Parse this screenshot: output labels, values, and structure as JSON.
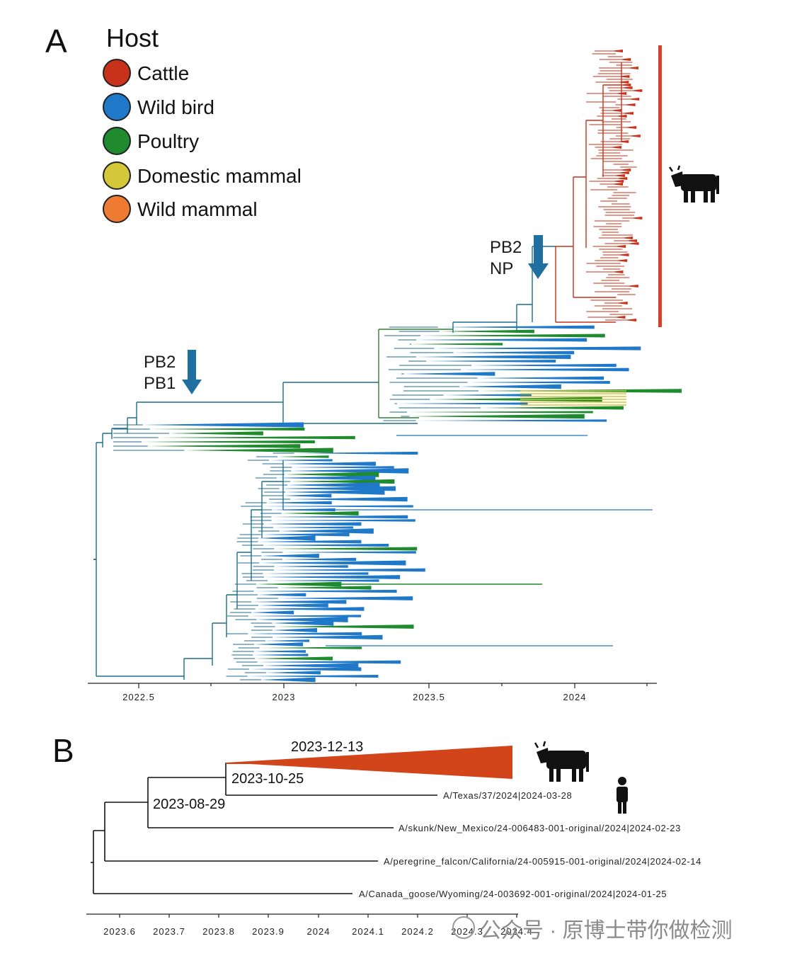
{
  "colors": {
    "cattle": "#c8321a",
    "wild_bird": "#1f78c8",
    "poultry": "#1f8a2e",
    "domestic_mammal": "#d4c83a",
    "wild_mammal": "#ef7a32",
    "trunk": "#1c6e8c",
    "arrow": "#1f6fa0",
    "cattle_bar": "#d2442a",
    "triangle": "#d2441a"
  },
  "panel_a": {
    "letter": "A",
    "legend": {
      "title": "Host",
      "items": [
        {
          "label": "Cattle",
          "color": "#c8321a"
        },
        {
          "label": "Wild bird",
          "color": "#1f78c8"
        },
        {
          "label": "Poultry",
          "color": "#1f8a2e"
        },
        {
          "label": "Domestic mammal",
          "color": "#d4c83a"
        },
        {
          "label": "Wild mammal",
          "color": "#ef7a32"
        }
      ]
    },
    "callout_1": {
      "line1": "PB2",
      "line2": "NP"
    },
    "callout_2": {
      "line1": "PB2",
      "line2": "PB1"
    },
    "axis_ticks": [
      "2022.5",
      "2023",
      "2023.5",
      "2024"
    ],
    "cattle_icon": "cow-icon"
  },
  "panel_b": {
    "letter": "B",
    "node_dates": [
      "2023-12-13",
      "2023-10-25",
      "2023-08-29"
    ],
    "tips": [
      "A/Texas/37/2024|2024-03-28",
      "A/skunk/New_Mexico/24-006483-001-original/2024|2024-02-23",
      "A/peregrine_falcon/California/24-005915-001-original/2024|2024-02-14",
      "A/Canada_goose/Wyoming/24-003692-001-original/2024|2024-01-25"
    ],
    "axis_ticks": [
      "2023.6",
      "2023.7",
      "2023.8",
      "2023.9",
      "2024",
      "2024.1",
      "2024.2",
      "2024.3",
      "2024.4"
    ],
    "cattle_icon": "cow-icon",
    "human_icon": "human-icon"
  },
  "watermark": "公众号 · 原博士带你做检测"
}
